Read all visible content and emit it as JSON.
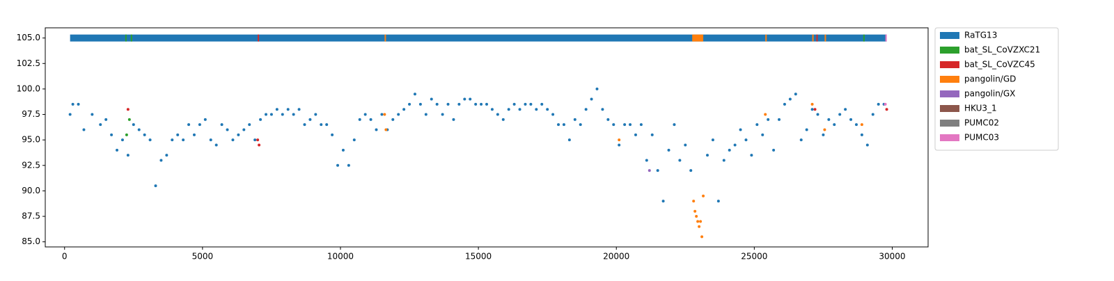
{
  "chart_data": {
    "type": "scatter",
    "xlim": [
      -700,
      31300
    ],
    "ylim": [
      84.5,
      106
    ],
    "xticks": [
      0,
      5000,
      10000,
      15000,
      20000,
      25000,
      30000
    ],
    "yticks": [
      {
        "value": 85,
        "label": "85.0"
      },
      {
        "value": 87.5,
        "label": "87.5"
      },
      {
        "value": 90,
        "label": "90.0"
      },
      {
        "value": 92.5,
        "label": "92.5"
      },
      {
        "value": 95,
        "label": "95.0"
      },
      {
        "value": 97.5,
        "label": "97.5"
      },
      {
        "value": 100,
        "label": "100.0"
      },
      {
        "value": 102.5,
        "label": "102.5"
      },
      {
        "value": 105,
        "label": "105.0"
      }
    ],
    "legend": "outside-right",
    "band": {
      "y": 105,
      "segments": [
        {
          "start": 200,
          "end": 29800,
          "color": "#1f77b4"
        },
        {
          "start": 2200,
          "end": 2250,
          "color": "#2ca02c"
        },
        {
          "start": 2400,
          "end": 2450,
          "color": "#2ca02c"
        },
        {
          "start": 7000,
          "end": 7050,
          "color": "#d62728"
        },
        {
          "start": 11600,
          "end": 11650,
          "color": "#ff7f0e"
        },
        {
          "start": 22750,
          "end": 23150,
          "color": "#ff7f0e"
        },
        {
          "start": 25400,
          "end": 25450,
          "color": "#ff7f0e"
        },
        {
          "start": 27100,
          "end": 27150,
          "color": "#ff7f0e"
        },
        {
          "start": 27250,
          "end": 27300,
          "color": "#d62728"
        },
        {
          "start": 27550,
          "end": 27600,
          "color": "#ff7f0e"
        },
        {
          "start": 28950,
          "end": 29000,
          "color": "#2ca02c"
        },
        {
          "start": 29750,
          "end": 29800,
          "color": "#e377c2"
        }
      ]
    },
    "series": [
      {
        "name": "RaTG13",
        "color": "#1f77b4",
        "x": [
          200,
          300,
          500,
          700,
          1000,
          1300,
          1500,
          1700,
          1900,
          2100,
          2300,
          2500,
          2700,
          2900,
          3100,
          3300,
          3500,
          3700,
          3900,
          4100,
          4300,
          4500,
          4700,
          4900,
          5100,
          5300,
          5500,
          5700,
          5900,
          6100,
          6300,
          6500,
          6700,
          6900,
          7100,
          7300,
          7500,
          7700,
          7900,
          8100,
          8300,
          8500,
          8700,
          8900,
          9100,
          9300,
          9500,
          9700,
          9900,
          10100,
          10300,
          10500,
          10700,
          10900,
          11100,
          11300,
          11500,
          11700,
          11900,
          12100,
          12300,
          12500,
          12700,
          12900,
          13100,
          13300,
          13500,
          13700,
          13900,
          14100,
          14300,
          14500,
          14700,
          14900,
          15100,
          15300,
          15500,
          15700,
          15900,
          16100,
          16300,
          16500,
          16700,
          16900,
          17100,
          17300,
          17500,
          17700,
          17900,
          18100,
          18300,
          18500,
          18700,
          18900,
          19100,
          19300,
          19500,
          19700,
          19900,
          20100,
          20300,
          20500,
          20700,
          20900,
          21100,
          21300,
          21500,
          21700,
          21900,
          22100,
          22300,
          22500,
          22700,
          23300,
          23500,
          23700,
          23900,
          24100,
          24300,
          24500,
          24700,
          24900,
          25100,
          25300,
          25500,
          25700,
          25900,
          26100,
          26300,
          26500,
          26700,
          26900,
          27100,
          27300,
          27500,
          27700,
          27900,
          28100,
          28300,
          28500,
          28700,
          28900,
          29100,
          29300,
          29500,
          29700
        ],
        "values": [
          97.5,
          98.5,
          98.5,
          96,
          97.5,
          96.5,
          97,
          95.5,
          94,
          95,
          93.5,
          96.5,
          96,
          95.5,
          95,
          90.5,
          93,
          93.5,
          95,
          95.5,
          95,
          96.5,
          95.5,
          96.5,
          97,
          95,
          94.5,
          96.5,
          96,
          95,
          95.5,
          96,
          96.5,
          95,
          97,
          97.5,
          97.5,
          98,
          97.5,
          98,
          97.5,
          98,
          96.5,
          97,
          97.5,
          96.5,
          96.5,
          95.5,
          92.5,
          94,
          92.5,
          95,
          97,
          97.5,
          97,
          96,
          97.5,
          96,
          97,
          97.5,
          98,
          98.5,
          99.5,
          98.5,
          97.5,
          99,
          98.5,
          97.5,
          98.5,
          97,
          98.5,
          99,
          99,
          98.5,
          98.5,
          98.5,
          98,
          97.5,
          97,
          98,
          98.5,
          98,
          98.5,
          98.5,
          98,
          98.5,
          98,
          97.5,
          96.5,
          96.5,
          95,
          97,
          96.5,
          98,
          99,
          100,
          98,
          97,
          96.5,
          94.5,
          96.5,
          96.5,
          95.5,
          96.5,
          93,
          95.5,
          92,
          89,
          94,
          96.5,
          93,
          94.5,
          92,
          93.5,
          95,
          89,
          93,
          94,
          94.5,
          96,
          95,
          93.5,
          96.5,
          95.5,
          97,
          94,
          97,
          98.5,
          99,
          99.5,
          95,
          96,
          98,
          97.5,
          95.5,
          97,
          96.5,
          97.5,
          98,
          97,
          96.5,
          95.5,
          94.5,
          97.5,
          98.5,
          98.5
        ]
      },
      {
        "name": "bat_SL_CoVZXC21",
        "color": "#2ca02c",
        "x": [
          2250,
          2350
        ],
        "values": [
          95.5,
          97
        ]
      },
      {
        "name": "bat_SL_CoVZC45",
        "color": "#d62728",
        "x": [
          2300,
          7000,
          7050,
          27200,
          29800
        ],
        "values": [
          98,
          95,
          94.5,
          98,
          98
        ]
      },
      {
        "name": "pangolin/GD",
        "color": "#ff7f0e",
        "x": [
          11600,
          11650,
          20100,
          22800,
          22850,
          22900,
          22950,
          23000,
          23050,
          23100,
          23150,
          25400,
          27100,
          27550,
          28900
        ],
        "values": [
          97.5,
          96,
          95,
          89,
          88,
          87.5,
          87,
          86.5,
          87,
          85.5,
          89.5,
          97.5,
          98.5,
          96,
          96.5
        ]
      },
      {
        "name": "pangolin/GX",
        "color": "#9467bd",
        "x": [
          21200
        ],
        "values": [
          92
        ]
      },
      {
        "name": "HKU3_1",
        "color": "#8c564b",
        "x": [],
        "values": []
      },
      {
        "name": "PUMC02",
        "color": "#7f7f7f",
        "x": [],
        "values": []
      },
      {
        "name": "PUMC03",
        "color": "#e377c2",
        "x": [
          29750
        ],
        "values": [
          98.5
        ]
      }
    ]
  }
}
